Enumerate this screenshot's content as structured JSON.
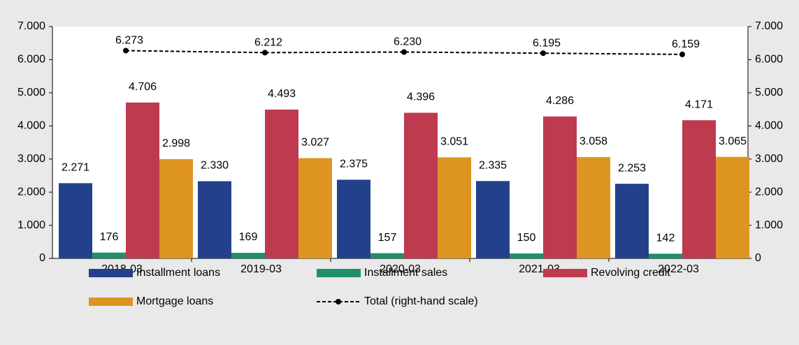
{
  "chart_data": {
    "type": "bar",
    "categories": [
      "2018-03",
      "2019-03",
      "2020-03",
      "2021-03",
      "2022-03"
    ],
    "series": [
      {
        "name": "Installment loans",
        "color": "#23418a",
        "values": [
          2271,
          2330,
          2375,
          2335,
          2253
        ],
        "value_labels": [
          "2.271",
          "2.330",
          "2.375",
          "2.335",
          "2.253"
        ]
      },
      {
        "name": "Installment sales",
        "color": "#1f8f6a",
        "values": [
          176,
          169,
          157,
          150,
          142
        ]
      },
      {
        "name": "Revolving credit",
        "color": "#be3a4f",
        "values": [
          4706,
          4493,
          4396,
          4286,
          4171
        ],
        "value_labels": [
          "4.706",
          "4.493",
          "4.396",
          "4.286",
          "4.171"
        ]
      },
      {
        "name": "Mortgage loans",
        "color": "#de9420",
        "values": [
          2998,
          3027,
          3051,
          3058,
          3065
        ],
        "value_labels": [
          "2.998",
          "3.027",
          "3.051",
          "3.058",
          "3.065"
        ]
      },
      {
        "name": "Total (right-hand scale)",
        "color": "#000000",
        "type": "line",
        "axis": "y2",
        "values": [
          6273,
          6212,
          6230,
          6195,
          6159
        ],
        "value_labels": [
          "6.273",
          "6.212",
          "6.230",
          "6.195",
          "6.159"
        ]
      }
    ],
    "ylim": [
      0,
      7000
    ],
    "yticks": [
      0,
      {
        "value": 1000,
        "label": "1.000"
      },
      {
        "value": 2000,
        "label": "2.000"
      },
      {
        "value": 3000,
        "label": "3.000"
      },
      {
        "value": 4000,
        "label": "4.000"
      },
      {
        "value": 5000,
        "label": "5.000"
      },
      {
        "value": 6000,
        "label": "6.000"
      },
      {
        "value": 7000,
        "label": "7.000"
      }
    ],
    "y2lim": [
      0,
      7000
    ],
    "y2ticks": [
      0,
      {
        "value": 1000,
        "label": "1.000"
      },
      {
        "value": 2000,
        "label": "2.000"
      },
      {
        "value": 3000,
        "label": "3.000"
      },
      {
        "value": 4000,
        "label": "4.000"
      },
      {
        "value": 5000,
        "label": "5.000"
      },
      {
        "value": 6000,
        "label": "6.000"
      },
      {
        "value": 7000,
        "label": "7.000"
      }
    ],
    "grid": false,
    "legend": "bottom"
  }
}
